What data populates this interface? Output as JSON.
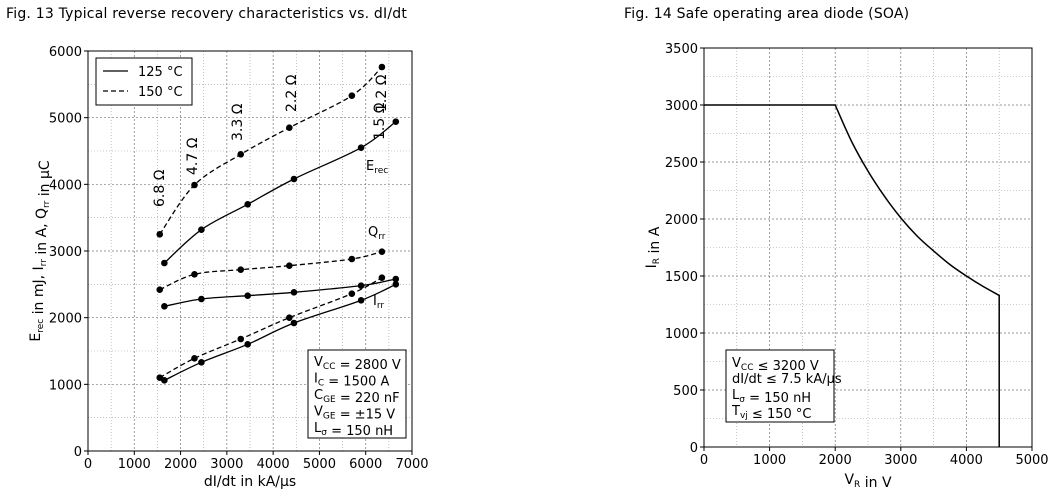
{
  "fig13": {
    "title": "Fig. 13  Typical reverse recovery characteristics vs. dI/dt",
    "legend": [
      {
        "label": "125 °C",
        "style": "solid"
      },
      {
        "label": "150 °C",
        "style": "dashed"
      }
    ],
    "curve_labels": {
      "erec": {
        "main": "E",
        "sub": "rec"
      },
      "qrr": {
        "main": "Q",
        "sub": "rr"
      },
      "irr": {
        "main": "I",
        "sub": "rr"
      }
    },
    "resistor_labels": [
      "6.8 Ω",
      "4.7 Ω",
      "3.3 Ω",
      "2.2 Ω",
      "1.5 Ω",
      "1.2 Ω"
    ],
    "conditions": [
      {
        "main": "V",
        "sub": "CC",
        "rest": " = 2800 V"
      },
      {
        "main": "I",
        "sub": "C",
        "rest": " = 1500 A"
      },
      {
        "main": "C",
        "sub": "GE",
        "rest": " = 220 nF"
      },
      {
        "main": "V",
        "sub": "GE",
        "rest": " = ±15 V"
      },
      {
        "main": "L",
        "sub": "σ",
        "rest": " = 150 nH"
      }
    ],
    "xlabel": "dI/dt in kA/µs",
    "ylabel_parts": [
      {
        "main": "E",
        "sub": "rec"
      },
      {
        "main": " in mJ, I",
        "sub": "rr"
      },
      {
        "main": " in A, Q",
        "sub": "rr"
      },
      {
        "main": " in µC",
        "sub": ""
      }
    ]
  },
  "fig14": {
    "title": "Fig. 14  Safe operating area diode (SOA)",
    "conditions": [
      {
        "main": "V",
        "sub": "CC",
        "rest": " ≤ 3200 V"
      },
      {
        "main": "dI/dt",
        "sub": "",
        "rest": " ≤ 7.5 kA/µs"
      },
      {
        "main": "L",
        "sub": "σ",
        "rest": " = 150 nH"
      },
      {
        "main": "T",
        "sub": "vj",
        "rest": " ≤ 150 °C"
      }
    ],
    "xlabel": {
      "main": "V",
      "sub": "R",
      "rest": " in V"
    },
    "ylabel": {
      "main": "I",
      "sub": "R",
      "rest": " in A"
    }
  },
  "chart_data": [
    {
      "type": "line",
      "title": "Fig. 13  Typical reverse recovery characteristics vs. dI/dt",
      "xlabel": "dI/dt in kA/µs",
      "ylabel": "Erec in mJ, Irr in A, Qrr in µC",
      "xlim": [
        0,
        7000
      ],
      "ylim": [
        0,
        6000
      ],
      "xticks": [
        0,
        1000,
        2000,
        3000,
        4000,
        5000,
        6000,
        7000
      ],
      "yticks": [
        0,
        1000,
        2000,
        3000,
        4000,
        5000,
        6000
      ],
      "grid": true,
      "legend": "top-left",
      "series": [
        {
          "name": "Erec 125 °C",
          "style": "solid",
          "x": [
            1650,
            2450,
            3450,
            4450,
            5900,
            6650
          ],
          "y": [
            2820,
            3320,
            3700,
            4080,
            4550,
            4940
          ]
        },
        {
          "name": "Erec 150 °C",
          "style": "dashed",
          "x": [
            1550,
            2300,
            3300,
            4350,
            5700,
            6350
          ],
          "y": [
            3250,
            3990,
            4450,
            4850,
            5330,
            5760
          ]
        },
        {
          "name": "Qrr 125 °C",
          "style": "solid",
          "x": [
            1650,
            2450,
            3450,
            4450,
            5900,
            6650
          ],
          "y": [
            2170,
            2280,
            2330,
            2380,
            2480,
            2580
          ]
        },
        {
          "name": "Qrr 150 °C",
          "style": "dashed",
          "x": [
            1550,
            2300,
            3300,
            4350,
            5700,
            6350
          ],
          "y": [
            2420,
            2650,
            2720,
            2780,
            2880,
            2990
          ]
        },
        {
          "name": "Irr 125 °C",
          "style": "solid",
          "x": [
            1650,
            2450,
            3450,
            4450,
            5900,
            6650
          ],
          "y": [
            1060,
            1330,
            1600,
            1920,
            2260,
            2500
          ]
        },
        {
          "name": "Irr 150 °C",
          "style": "dashed",
          "x": [
            1550,
            2300,
            3300,
            4350,
            5700,
            6350
          ],
          "y": [
            1100,
            1390,
            1680,
            2000,
            2360,
            2600
          ]
        }
      ]
    },
    {
      "type": "line",
      "title": "Fig. 14  Safe operating area diode (SOA)",
      "xlabel": "VR in V",
      "ylabel": "IR in A",
      "xlim": [
        0,
        5000
      ],
      "ylim": [
        0,
        3500
      ],
      "xticks": [
        0,
        1000,
        2000,
        3000,
        4000,
        5000
      ],
      "yticks": [
        0,
        500,
        1000,
        1500,
        2000,
        2500,
        3000,
        3500
      ],
      "grid": true,
      "series": [
        {
          "style": "solid",
          "x": [
            0,
            2000,
            2250,
            2500,
            2750,
            3000,
            3250,
            3500,
            3750,
            4000,
            4250,
            4500,
            4500
          ],
          "y": [
            3000,
            3000,
            2680,
            2420,
            2200,
            2010,
            1850,
            1720,
            1600,
            1500,
            1410,
            1330,
            0
          ]
        }
      ]
    }
  ]
}
